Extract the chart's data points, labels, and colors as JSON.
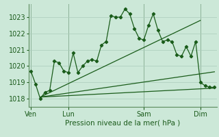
{
  "title": "Pression niveau de la mer( hPa )",
  "bg_color": "#cce8d8",
  "grid_color": "#aaccbb",
  "line_color": "#1a5c1a",
  "ylim": [
    1017.5,
    1023.8
  ],
  "yticks": [
    1018,
    1019,
    1020,
    1021,
    1022,
    1023
  ],
  "day_labels": [
    "Ven",
    "Lun",
    "Sam",
    "Dim"
  ],
  "day_positions": [
    0,
    8,
    24,
    36
  ],
  "xlim": [
    -0.5,
    39.5
  ],
  "line1_x": [
    0,
    1,
    2,
    3,
    4,
    5,
    6,
    7,
    8,
    9,
    10,
    11,
    12,
    13,
    14,
    15,
    16,
    17,
    18,
    19,
    20,
    21,
    22,
    23,
    24,
    25,
    26,
    27,
    28,
    29,
    30,
    31,
    32,
    33,
    34,
    35,
    36,
    37,
    38,
    39
  ],
  "line1_y": [
    1019.7,
    1018.9,
    1018.0,
    1018.4,
    1018.5,
    1020.3,
    1020.2,
    1019.7,
    1019.6,
    1020.8,
    1019.6,
    1020.0,
    1020.3,
    1020.4,
    1020.3,
    1021.3,
    1021.5,
    1023.1,
    1023.0,
    1023.0,
    1023.5,
    1023.2,
    1022.3,
    1021.7,
    1021.6,
    1022.5,
    1023.2,
    1022.2,
    1021.5,
    1021.6,
    1021.5,
    1020.7,
    1020.6,
    1021.2,
    1020.6,
    1021.5,
    1019.0,
    1018.8,
    1018.7,
    1018.7
  ],
  "line2_x": [
    2,
    39
  ],
  "line2_y": [
    1018.1,
    1018.65
  ],
  "line3_x": [
    2,
    36
  ],
  "line3_y": [
    1018.1,
    1022.8
  ],
  "line4_x": [
    2,
    39
  ],
  "line4_y": [
    1018.1,
    1019.65
  ],
  "vline_positions": [
    0,
    8,
    24,
    36
  ]
}
